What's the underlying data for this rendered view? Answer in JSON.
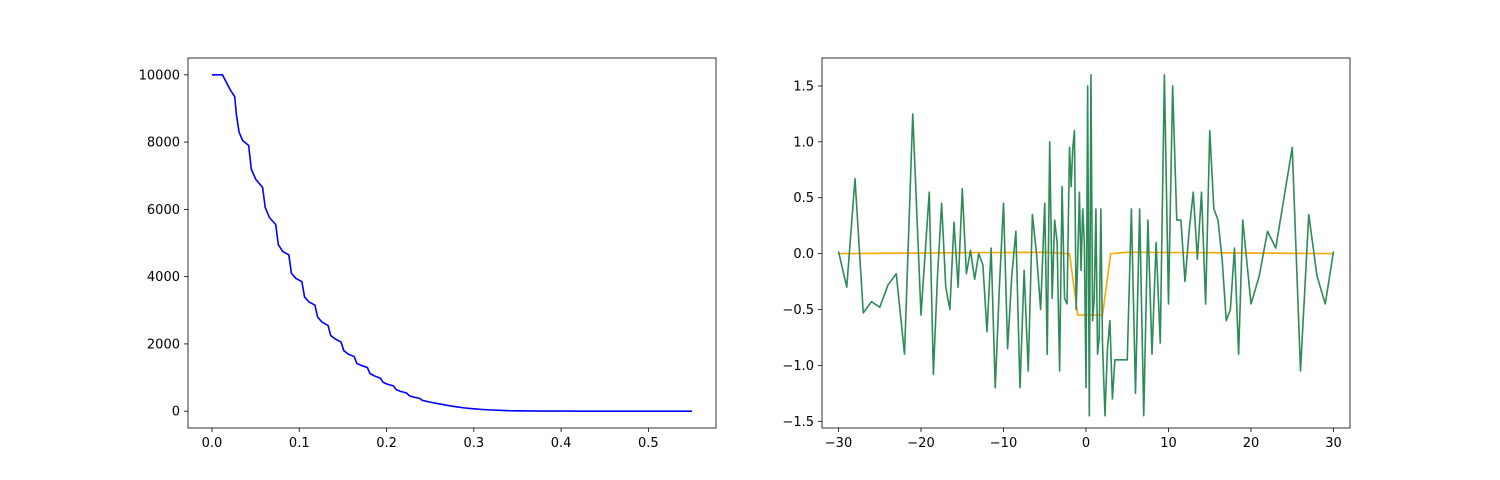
{
  "chart_data": [
    {
      "type": "line",
      "title": "",
      "xlabel": "",
      "ylabel": "",
      "xlim": [
        -0.0275,
        0.5775
      ],
      "ylim": [
        -500,
        10500
      ],
      "xticks": [
        0.0,
        0.1,
        0.2,
        0.3,
        0.4,
        0.5,
        0.6
      ],
      "xtick_labels": [
        "0.0",
        "0.1",
        "0.2",
        "0.3",
        "0.4",
        "0.5"
      ],
      "yticks": [
        0,
        2000,
        4000,
        6000,
        8000,
        10000
      ],
      "ytick_labels": [
        "0",
        "2000",
        "4000",
        "6000",
        "8000",
        "10000"
      ],
      "grid": false,
      "series": [
        {
          "color": "#0000ff",
          "x": [
            0.0,
            0.012,
            0.016,
            0.021,
            0.026,
            0.028,
            0.031,
            0.035,
            0.042,
            0.045,
            0.05,
            0.058,
            0.061,
            0.066,
            0.073,
            0.076,
            0.081,
            0.088,
            0.091,
            0.096,
            0.103,
            0.106,
            0.111,
            0.118,
            0.121,
            0.126,
            0.133,
            0.136,
            0.141,
            0.148,
            0.151,
            0.156,
            0.163,
            0.166,
            0.171,
            0.178,
            0.181,
            0.186,
            0.193,
            0.196,
            0.201,
            0.208,
            0.211,
            0.216,
            0.223,
            0.226,
            0.231,
            0.238,
            0.241,
            0.25,
            0.26,
            0.27,
            0.28,
            0.29,
            0.3,
            0.31,
            0.32,
            0.33,
            0.34,
            0.36,
            0.38,
            0.4,
            0.43,
            0.46,
            0.5,
            0.55
          ],
          "y": [
            10000,
            10000,
            9800,
            9550,
            9350,
            8800,
            8300,
            8050,
            7900,
            7200,
            6900,
            6650,
            6050,
            5750,
            5550,
            4950,
            4750,
            4650,
            4100,
            3950,
            3850,
            3400,
            3250,
            3150,
            2800,
            2650,
            2550,
            2250,
            2150,
            2050,
            1800,
            1700,
            1620,
            1420,
            1360,
            1300,
            1120,
            1050,
            980,
            860,
            800,
            750,
            640,
            590,
            540,
            460,
            420,
            380,
            320,
            270,
            220,
            170,
            130,
            95,
            70,
            50,
            35,
            25,
            15,
            8,
            4,
            2,
            1,
            0,
            0,
            0
          ]
        }
      ]
    },
    {
      "type": "line",
      "title": "",
      "xlabel": "",
      "ylabel": "",
      "xlim": [
        -3.2,
        3.2
      ],
      "ylim": [
        -1.56,
        1.75
      ],
      "xticks": [
        -3,
        -2,
        -1,
        0,
        1,
        2,
        3
      ],
      "xtick_labels": [
        "−30",
        "−20",
        "−10",
        "0",
        "10",
        "20",
        "30"
      ],
      "yticks": [
        -1.5,
        -1.0,
        -0.5,
        0.0,
        0.5,
        1.0,
        1.5
      ],
      "ytick_labels": [
        "−1.5",
        "−1.0",
        "−0.5",
        "0.0",
        "0.5",
        "1.0",
        "1.5"
      ],
      "grid": false,
      "series": [
        {
          "color": "#ffa500",
          "x": [
            -3.0,
            -2.5,
            -2.0,
            -1.5,
            -1.0,
            -0.5,
            -0.2,
            -0.1,
            0.0,
            0.1,
            0.2,
            0.3,
            0.5,
            1.0,
            1.5,
            2.0,
            2.5,
            3.0
          ],
          "y": [
            0.0,
            0.003,
            0.005,
            0.008,
            0.01,
            0.012,
            0.0,
            -0.55,
            -0.55,
            -0.55,
            -0.55,
            0.0,
            0.012,
            0.01,
            0.008,
            0.005,
            0.003,
            0.0
          ]
        },
        {
          "color": "#2e8b57",
          "x": [
            -3.0,
            -2.9,
            -2.8,
            -2.7,
            -2.6,
            -2.5,
            -2.4,
            -2.3,
            -2.2,
            -2.1,
            -2.0,
            -1.9,
            -1.85,
            -1.8,
            -1.75,
            -1.7,
            -1.65,
            -1.6,
            -1.55,
            -1.5,
            -1.45,
            -1.4,
            -1.35,
            -1.3,
            -1.25,
            -1.2,
            -1.15,
            -1.1,
            -1.05,
            -1.0,
            -0.95,
            -0.9,
            -0.85,
            -0.8,
            -0.75,
            -0.7,
            -0.65,
            -0.6,
            -0.55,
            -0.5,
            -0.47,
            -0.44,
            -0.41,
            -0.38,
            -0.35,
            -0.32,
            -0.29,
            -0.26,
            -0.23,
            -0.2,
            -0.18,
            -0.16,
            -0.14,
            -0.12,
            -0.1,
            -0.08,
            -0.06,
            -0.04,
            -0.02,
            0.0,
            0.02,
            0.04,
            0.06,
            0.08,
            0.1,
            0.12,
            0.14,
            0.16,
            0.18,
            0.2,
            0.23,
            0.26,
            0.29,
            0.32,
            0.35,
            0.38,
            0.41,
            0.44,
            0.47,
            0.5,
            0.55,
            0.6,
            0.65,
            0.7,
            0.75,
            0.8,
            0.85,
            0.9,
            0.95,
            1.0,
            1.05,
            1.1,
            1.15,
            1.2,
            1.25,
            1.3,
            1.35,
            1.4,
            1.45,
            1.5,
            1.55,
            1.6,
            1.65,
            1.7,
            1.75,
            1.8,
            1.85,
            1.9,
            2.0,
            2.1,
            2.2,
            2.3,
            2.4,
            2.5,
            2.6,
            2.7,
            2.8,
            2.9,
            3.0
          ],
          "y": [
            0.02,
            -0.3,
            0.67,
            -0.53,
            -0.43,
            -0.48,
            -0.28,
            -0.18,
            -0.9,
            1.25,
            -0.55,
            0.55,
            -1.08,
            -0.2,
            0.45,
            -0.3,
            -0.5,
            0.28,
            -0.3,
            0.58,
            -0.18,
            0.03,
            -0.23,
            0.0,
            -0.1,
            -0.7,
            0.05,
            -1.2,
            -0.3,
            0.45,
            -0.85,
            -0.2,
            0.2,
            -1.2,
            -0.15,
            -1.05,
            0.35,
            0.0,
            -0.5,
            0.45,
            -0.9,
            1.0,
            -0.4,
            0.3,
            0.1,
            -1.05,
            0.6,
            -0.4,
            -0.45,
            0.95,
            0.6,
            0.95,
            1.1,
            -0.5,
            -0.05,
            0.55,
            -0.15,
            0.4,
            0.1,
            -1.2,
            1.5,
            -1.45,
            1.6,
            -0.6,
            -0.4,
            0.4,
            -0.9,
            -0.75,
            0.4,
            -0.8,
            -1.45,
            -0.85,
            -0.6,
            -1.3,
            -0.95,
            -0.95,
            -0.95,
            -0.95,
            -0.95,
            -0.95,
            0.4,
            -1.25,
            0.4,
            -1.45,
            0.3,
            -0.9,
            0.1,
            -0.8,
            1.6,
            -0.45,
            1.5,
            0.3,
            0.3,
            -0.25,
            0.2,
            0.55,
            -0.05,
            0.55,
            -0.45,
            1.1,
            0.4,
            0.3,
            -0.05,
            -0.6,
            -0.5,
            0.05,
            -0.9,
            0.3,
            -0.45,
            -0.2,
            0.2,
            0.05,
            0.5,
            0.95,
            -1.05,
            0.35,
            -0.2,
            -0.45,
            0.02
          ]
        }
      ]
    }
  ]
}
